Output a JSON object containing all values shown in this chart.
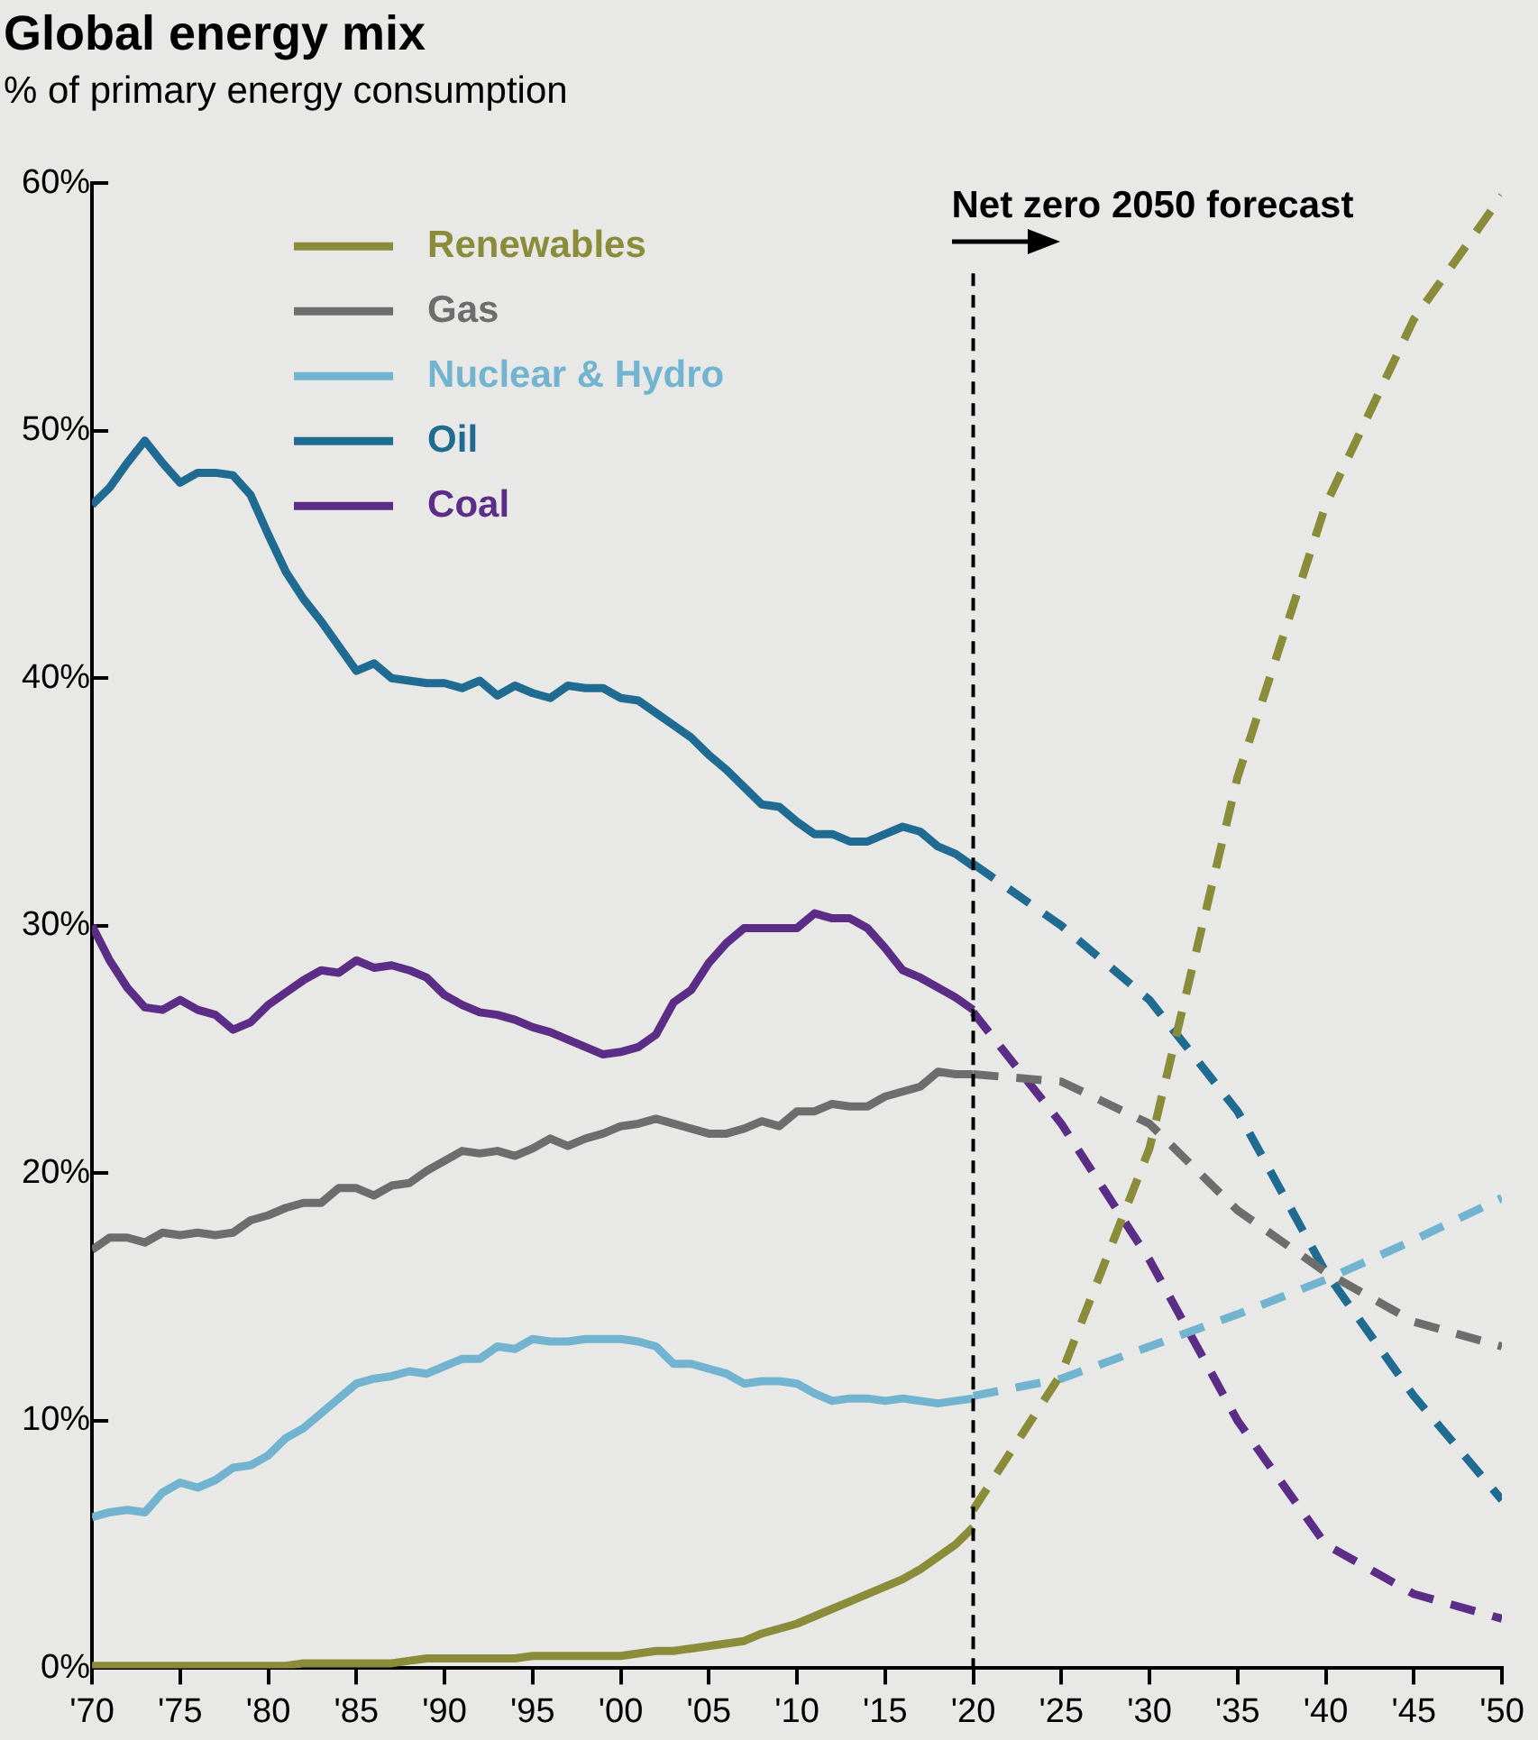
{
  "chart_data": {
    "type": "line",
    "title": "Global energy mix",
    "subtitle": "% of primary energy consumption",
    "x": [
      1970,
      1971,
      1972,
      1973,
      1974,
      1975,
      1976,
      1977,
      1978,
      1979,
      1980,
      1981,
      1982,
      1983,
      1984,
      1985,
      1986,
      1987,
      1988,
      1989,
      1990,
      1991,
      1992,
      1993,
      1994,
      1995,
      1996,
      1997,
      1998,
      1999,
      2000,
      2001,
      2002,
      2003,
      2004,
      2005,
      2006,
      2007,
      2008,
      2009,
      2010,
      2011,
      2012,
      2013,
      2014,
      2015,
      2016,
      2017,
      2018,
      2019,
      2020
    ],
    "series": [
      {
        "name": "Renewables",
        "color": "#8a8c3a",
        "values": [
          0.1,
          0.1,
          0.1,
          0.1,
          0.1,
          0.1,
          0.1,
          0.1,
          0.1,
          0.1,
          0.1,
          0.1,
          0.2,
          0.2,
          0.2,
          0.2,
          0.2,
          0.2,
          0.3,
          0.4,
          0.4,
          0.4,
          0.4,
          0.4,
          0.4,
          0.5,
          0.5,
          0.5,
          0.5,
          0.5,
          0.5,
          0.6,
          0.7,
          0.7,
          0.8,
          0.9,
          1.0,
          1.1,
          1.4,
          1.6,
          1.8,
          2.1,
          2.4,
          2.7,
          3.0,
          3.3,
          3.6,
          4.0,
          4.5,
          5.0,
          5.7
        ]
      },
      {
        "name": "Gas",
        "color": "#6d6d6d",
        "values": [
          16.9,
          17.4,
          17.4,
          17.2,
          17.6,
          17.5,
          17.6,
          17.5,
          17.6,
          18.1,
          18.3,
          18.6,
          18.8,
          18.8,
          19.4,
          19.4,
          19.1,
          19.5,
          19.6,
          20.1,
          20.5,
          20.9,
          20.8,
          20.9,
          20.7,
          21.0,
          21.4,
          21.1,
          21.4,
          21.6,
          21.9,
          22.0,
          22.2,
          22.0,
          21.8,
          21.6,
          21.6,
          21.8,
          22.1,
          21.9,
          22.5,
          22.5,
          22.8,
          22.7,
          22.7,
          23.1,
          23.3,
          23.5,
          24.1,
          24.0,
          24.0
        ]
      },
      {
        "name": "Nuclear & Hydro",
        "color": "#72b4d0",
        "values": [
          6.1,
          6.3,
          6.4,
          6.3,
          7.1,
          7.5,
          7.3,
          7.6,
          8.1,
          8.2,
          8.6,
          9.3,
          9.7,
          10.3,
          10.9,
          11.5,
          11.7,
          11.8,
          12.0,
          11.9,
          12.2,
          12.5,
          12.5,
          13.0,
          12.9,
          13.3,
          13.2,
          13.2,
          13.3,
          13.3,
          13.3,
          13.2,
          13.0,
          12.3,
          12.3,
          12.1,
          11.9,
          11.5,
          11.6,
          11.6,
          11.5,
          11.1,
          10.8,
          10.9,
          10.9,
          10.8,
          10.9,
          10.8,
          10.7,
          10.8,
          10.9
        ]
      },
      {
        "name": "Oil",
        "color": "#1f6b92",
        "values": [
          47.0,
          47.7,
          48.7,
          49.6,
          48.7,
          47.9,
          48.3,
          48.3,
          48.2,
          47.4,
          45.8,
          44.3,
          43.2,
          42.3,
          41.3,
          40.3,
          40.6,
          40.0,
          39.9,
          39.8,
          39.8,
          39.6,
          39.9,
          39.3,
          39.7,
          39.4,
          39.2,
          39.7,
          39.6,
          39.6,
          39.2,
          39.1,
          38.6,
          38.1,
          37.6,
          36.9,
          36.3,
          35.6,
          34.9,
          34.8,
          34.2,
          33.7,
          33.7,
          33.4,
          33.4,
          33.7,
          34.0,
          33.8,
          33.2,
          32.9,
          32.4
        ]
      },
      {
        "name": "Coal",
        "color": "#5c2d86",
        "values": [
          30.0,
          28.6,
          27.5,
          26.7,
          26.6,
          27.0,
          26.6,
          26.4,
          25.8,
          26.1,
          26.8,
          27.3,
          27.8,
          28.2,
          28.1,
          28.6,
          28.3,
          28.4,
          28.2,
          27.9,
          27.2,
          26.8,
          26.5,
          26.4,
          26.2,
          25.9,
          25.7,
          25.4,
          25.1,
          24.8,
          24.9,
          25.1,
          25.6,
          26.9,
          27.4,
          28.5,
          29.3,
          29.9,
          29.9,
          29.9,
          29.9,
          30.5,
          30.3,
          30.3,
          29.9,
          29.1,
          28.2,
          27.9,
          27.5,
          27.1,
          26.6
        ]
      },
      {
        "color": "#8a8c3a",
        "line_style": "dashed",
        "x": [
          2020,
          2025,
          2030,
          2035,
          2040,
          2045,
          2050
        ],
        "values": [
          6.4,
          11.9,
          21.0,
          36.0,
          47.0,
          54.5,
          59.5
        ]
      },
      {
        "color": "#6d6d6d",
        "line_style": "dashed",
        "x": [
          2020,
          2025,
          2030,
          2035,
          2040,
          2045,
          2050
        ],
        "values": [
          24.0,
          23.7,
          22.0,
          18.5,
          16.0,
          14.0,
          13.0
        ]
      },
      {
        "color": "#72b4d0",
        "line_style": "dashed",
        "x": [
          2020,
          2025,
          2030,
          2035,
          2040,
          2045,
          2050
        ],
        "values": [
          11.0,
          11.7,
          13.0,
          14.3,
          15.7,
          17.3,
          19.0
        ]
      },
      {
        "color": "#1f6b92",
        "line_style": "dashed",
        "x": [
          2020,
          2025,
          2030,
          2035,
          2040,
          2045,
          2050
        ],
        "values": [
          32.5,
          30.0,
          27.0,
          22.5,
          16.0,
          11.0,
          6.8
        ]
      },
      {
        "color": "#5c2d86",
        "line_style": "dashed",
        "x": [
          2020,
          2025,
          2030,
          2035,
          2040,
          2045,
          2050
        ],
        "values": [
          26.5,
          22.0,
          16.5,
          10.0,
          5.0,
          3.0,
          2.0
        ]
      }
    ],
    "xlim": [
      1970,
      2050
    ],
    "xticks": [
      {
        "value": 1970,
        "label": "'70"
      },
      {
        "value": 1975,
        "label": "'75"
      },
      {
        "value": 1980,
        "label": "'80"
      },
      {
        "value": 1985,
        "label": "'85"
      },
      {
        "value": 1990,
        "label": "'90"
      },
      {
        "value": 1995,
        "label": "'95"
      },
      {
        "value": 2000,
        "label": "'00"
      },
      {
        "value": 2005,
        "label": "'05"
      },
      {
        "value": 2010,
        "label": "'10"
      },
      {
        "value": 2015,
        "label": "'15"
      },
      {
        "value": 2020,
        "label": "'20"
      },
      {
        "value": 2025,
        "label": "'25"
      },
      {
        "value": 2030,
        "label": "'30"
      },
      {
        "value": 2035,
        "label": "'35"
      },
      {
        "value": 2040,
        "label": "'40"
      },
      {
        "value": 2045,
        "label": "'45"
      },
      {
        "value": 2050,
        "label": "'50"
      }
    ],
    "ylim": [
      0,
      60
    ],
    "yticks": [
      {
        "value": 0,
        "label": "0%"
      },
      {
        "value": 10,
        "label": "10%"
      },
      {
        "value": 20,
        "label": "20%"
      },
      {
        "value": 30,
        "label": "30%"
      },
      {
        "value": 40,
        "label": "40%"
      },
      {
        "value": 50,
        "label": "50%"
      },
      {
        "value": 60,
        "label": "60%"
      }
    ],
    "ref_lines": [
      {
        "axis": "x",
        "value": 2020,
        "label": "Net zero 2050 forecast",
        "color": "#000000",
        "line_style": "dashed"
      }
    ],
    "grid": false,
    "legend": "top left",
    "marker": "none",
    "line_style": "solid"
  }
}
